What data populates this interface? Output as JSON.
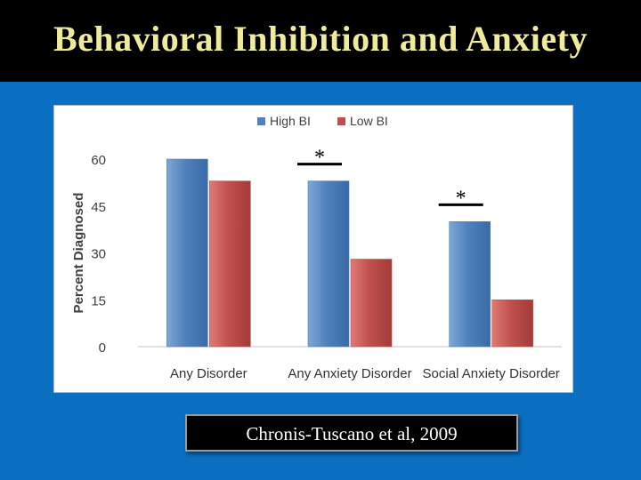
{
  "slide": {
    "title": "Behavioral Inhibition and Anxiety",
    "citation": "Chronis-Tuscano et al, 2009"
  },
  "colors": {
    "background": "#0a6fc0",
    "title_bar": "#000000",
    "title_text": "#eeeb9a",
    "high_bi": "#4f81bd",
    "low_bi": "#c0504d"
  },
  "chart_data": {
    "type": "bar",
    "title": "",
    "xlabel": "",
    "ylabel": "Percent Diagnosed",
    "ylim": [
      0,
      60
    ],
    "yticks": [
      0,
      15,
      30,
      45,
      60
    ],
    "grid": false,
    "legend_position": "top-center",
    "categories": [
      "Any Disorder",
      "Any Anxiety Disorder",
      "Social Anxiety Disorder"
    ],
    "series": [
      {
        "name": "High BI",
        "values": [
          60,
          53,
          40
        ]
      },
      {
        "name": "Low BI",
        "values": [
          53,
          28,
          15
        ]
      }
    ],
    "significance": [
      {
        "category": "Any Anxiety Disorder",
        "marker": "*"
      },
      {
        "category": "Social Anxiety Disorder",
        "marker": "*"
      }
    ]
  }
}
